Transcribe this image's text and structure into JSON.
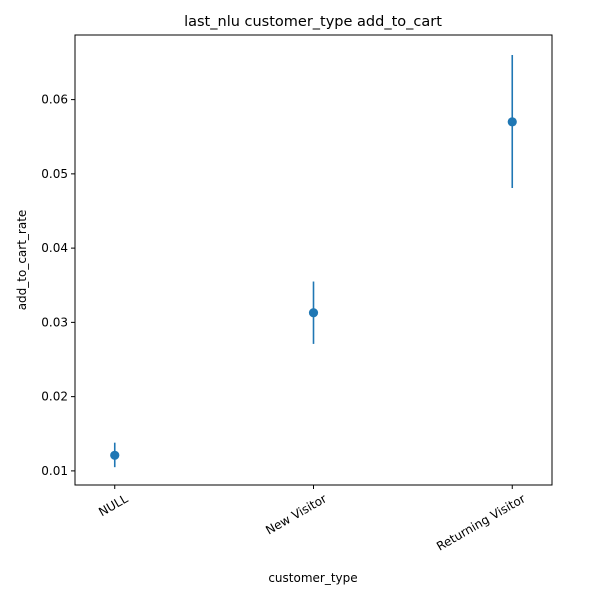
{
  "chart_data": {
    "type": "scatter",
    "title": "last_nlu customer_type add_to_cart",
    "xlabel": "customer_type",
    "ylabel": "add_to_cart_rate",
    "categories": [
      "NULL",
      "New Visitor",
      "Returning Visitor"
    ],
    "series": [
      {
        "values": [
          0.0121,
          0.0313,
          0.057
        ],
        "err_low": [
          0.0105,
          0.0271,
          0.0481
        ],
        "err_high": [
          0.0138,
          0.0355,
          0.066
        ]
      }
    ],
    "ylim": [
      0.0081,
      0.0687
    ],
    "yticks": [
      0.01,
      0.02,
      0.03,
      0.04,
      0.05,
      0.06
    ],
    "ytick_labels": [
      "0.01",
      "0.02",
      "0.03",
      "0.04",
      "0.05",
      "0.06"
    ],
    "grid": false,
    "colors": {
      "series": "#1f77b4"
    }
  }
}
